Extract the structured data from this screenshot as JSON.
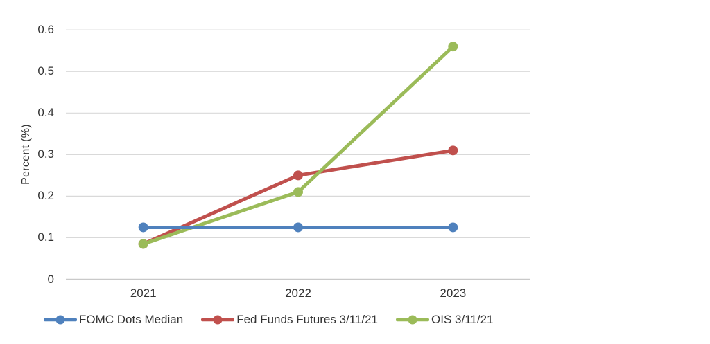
{
  "colors": {
    "background": "#ffffff",
    "gridline": "#d9d9d9",
    "axis_line": "#c9c9c9",
    "text": "#333333"
  },
  "chart_data": {
    "type": "line",
    "categories": [
      "2021",
      "2022",
      "2023"
    ],
    "series": [
      {
        "name": "FOMC Dots Median",
        "color": "#4f81bd",
        "values": [
          0.125,
          0.125,
          0.125
        ]
      },
      {
        "name": "Fed Funds Futures 3/11/21",
        "color": "#c0504d",
        "values": [
          0.085,
          0.25,
          0.31
        ]
      },
      {
        "name": "OIS 3/11/21",
        "color": "#9bbb59",
        "values": [
          0.085,
          0.21,
          0.56
        ]
      }
    ],
    "title": "",
    "xlabel": "",
    "ylabel": "Percent (%)",
    "ylim": [
      0,
      0.6
    ],
    "yticks": [
      0,
      0.1,
      0.2,
      0.3,
      0.4,
      0.5,
      0.6
    ],
    "ytick_labels": [
      "0",
      "0.1",
      "0.2",
      "0.3",
      "0.4",
      "0.5",
      "0.6"
    ],
    "grid": "horizontal",
    "marker": "circle",
    "legend_position": "bottom"
  }
}
